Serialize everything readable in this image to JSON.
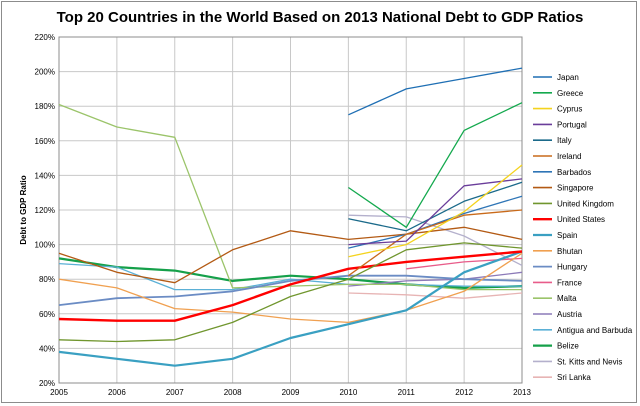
{
  "chart_data": {
    "type": "line",
    "title": "Top 20 Countries in the World Based on 2013 National Debt to GDP Ratios",
    "xlabel": "",
    "ylabel": "Debt to GDP Ratio",
    "x": [
      2005,
      2006,
      2007,
      2008,
      2009,
      2010,
      2011,
      2012,
      2013
    ],
    "xtick_labels": [
      "2005",
      "2006",
      "2007",
      "2008",
      "2009",
      "2010",
      "2011",
      "2012",
      "2013"
    ],
    "ylim": [
      20,
      220
    ],
    "yticks": [
      20,
      40,
      60,
      80,
      100,
      120,
      140,
      160,
      180,
      200,
      220
    ],
    "ytick_labels": [
      "20%",
      "40%",
      "60%",
      "80%",
      "100%",
      "120%",
      "140%",
      "160%",
      "180%",
      "200%",
      "220%"
    ],
    "grid": true,
    "legend_position": "right",
    "series": [
      {
        "name": "Japan",
        "color": "#1f6fb4",
        "values": [
          null,
          null,
          null,
          null,
          null,
          175,
          190,
          196,
          202
        ]
      },
      {
        "name": "Greece",
        "color": "#14a94e",
        "values": [
          null,
          null,
          null,
          null,
          null,
          133,
          110,
          166,
          182
        ]
      },
      {
        "name": "Cyprus",
        "color": "#f4d31e",
        "values": [
          null,
          null,
          null,
          null,
          null,
          93,
          100,
          119,
          146
        ]
      },
      {
        "name": "Portugal",
        "color": "#6a3d9a",
        "values": [
          null,
          null,
          null,
          null,
          null,
          100,
          102,
          134,
          138
        ]
      },
      {
        "name": "Italy",
        "color": "#1b6a8a",
        "values": [
          null,
          null,
          null,
          null,
          null,
          115,
          108,
          125,
          136
        ]
      },
      {
        "name": "Ireland",
        "color": "#c96a1a",
        "values": [
          null,
          null,
          null,
          null,
          null,
          82,
          106,
          117,
          120
        ]
      },
      {
        "name": "Barbados",
        "color": "#2e75b6",
        "values": [
          null,
          null,
          null,
          null,
          null,
          98,
          106,
          118,
          128
        ]
      },
      {
        "name": "Singapore",
        "color": "#b35a14",
        "values": [
          95,
          84,
          78,
          97,
          108,
          103,
          106,
          110,
          103
        ]
      },
      {
        "name": "United Kingdom",
        "color": "#70962e",
        "values": [
          45,
          44,
          45,
          55,
          70,
          80,
          97,
          101,
          98
        ]
      },
      {
        "name": "United States",
        "color": "#ff0000",
        "values": [
          57,
          56,
          56,
          65,
          77,
          86,
          90,
          93,
          96
        ]
      },
      {
        "name": "Spain",
        "color": "#3aa0c2",
        "values": [
          38,
          34,
          30,
          34,
          46,
          54,
          62,
          84,
          96
        ]
      },
      {
        "name": "Bhutan",
        "color": "#f0a050",
        "values": [
          80,
          75,
          63,
          61,
          57,
          55,
          62,
          73,
          95
        ]
      },
      {
        "name": "Hungary",
        "color": "#6b8cc4",
        "values": [
          65,
          69,
          70,
          73,
          79,
          82,
          82,
          80,
          79
        ]
      },
      {
        "name": "France",
        "color": "#e85c8a",
        "values": [
          null,
          null,
          null,
          null,
          null,
          null,
          86,
          90,
          92
        ]
      },
      {
        "name": "Malta",
        "color": "#9bc46a",
        "values": [
          181,
          168,
          162,
          75,
          76,
          77,
          77,
          74,
          74
        ]
      },
      {
        "name": "Austria",
        "color": "#8c7ab8",
        "values": [
          null,
          null,
          null,
          null,
          null,
          76,
          79,
          80,
          84
        ]
      },
      {
        "name": "Antigua and Barbuda",
        "color": "#5bb0d6",
        "values": [
          89,
          87,
          74,
          74,
          80,
          77,
          77,
          76,
          76
        ]
      },
      {
        "name": "Belize",
        "color": "#15a04a",
        "values": [
          92,
          87,
          85,
          79,
          82,
          80,
          77,
          75,
          76
        ]
      },
      {
        "name": "St. Kitts and Nevis",
        "color": "#b4b0cc",
        "values": [
          null,
          null,
          null,
          null,
          null,
          117,
          116,
          105,
          88
        ]
      },
      {
        "name": "Sri Lanka",
        "color": "#e7b4b4",
        "values": [
          null,
          null,
          null,
          null,
          null,
          72,
          71,
          69,
          72
        ]
      }
    ]
  }
}
